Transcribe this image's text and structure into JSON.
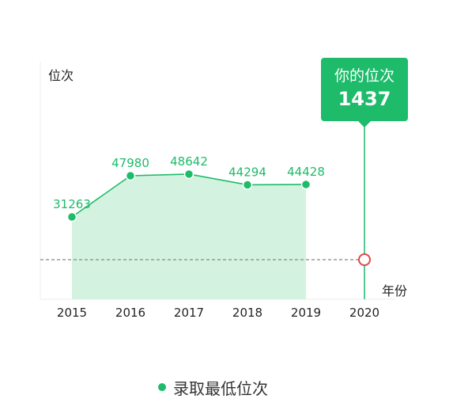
{
  "chart_data": {
    "type": "line",
    "ylabel": "位次",
    "xlabel": "年份",
    "categories": [
      "2015",
      "2016",
      "2017",
      "2018",
      "2019",
      "2020"
    ],
    "series": [
      {
        "name": "录取最低位次",
        "values": [
          31263,
          47980,
          48642,
          44294,
          44428,
          null
        ]
      }
    ],
    "area_fill": true,
    "highlight": {
      "category": "2020",
      "title": "你的位次",
      "value": 1437
    },
    "colors": {
      "line": "#1dbb6a",
      "area": "#d3f2df",
      "highlight_marker": "#e04848",
      "reference_line": "#888888"
    },
    "legend_position": "bottom"
  }
}
